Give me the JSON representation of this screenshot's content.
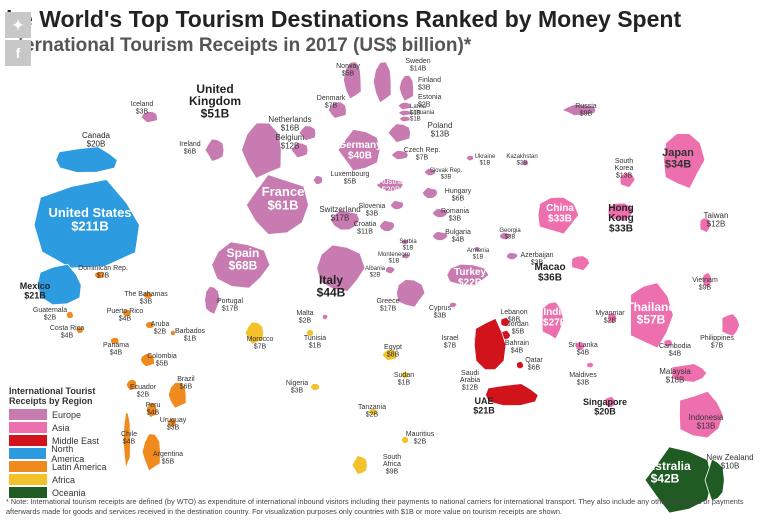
{
  "header": {
    "title": "he World's Top Tourism Destinations Ranked by Money Spent",
    "subtitle": "nternational Tourism Receipts in 2017 (US$ billion)*"
  },
  "share_icons": [
    "twitter-icon",
    "facebook-icon"
  ],
  "legend": {
    "title": "International Tourist Receipts by Region",
    "items": [
      {
        "label": "Europe",
        "color": "#c77bb0"
      },
      {
        "label": "Asia",
        "color": "#ee6fae"
      },
      {
        "label": "Middle East",
        "color": "#d1141c"
      },
      {
        "label": "North America",
        "color": "#2c9be0"
      },
      {
        "label": "Latin America",
        "color": "#ef8a1e"
      },
      {
        "label": "Africa",
        "color": "#f3c129"
      },
      {
        "label": "Oceania",
        "color": "#1f5b23"
      }
    ]
  },
  "footnote": "* Note: International tourism receipts are defined (by WTO) as expenditure of international inbound visitors including their payments to national carriers for international transport. They also include any other payments or payments afterwards made for goods and services received in the destination country. For visualization purposes only countries with $1B or more value on tourism receipts are shown.",
  "chart_data": {
    "type": "map",
    "title": "he World's Top Tourism Destinations Ranked by Money Spent",
    "subtitle": "nternational Tourism Receipts in 2017 (US$ billion)*",
    "unit": "US$ billion",
    "series": [
      {
        "name": "Europe",
        "color": "#c77bb0",
        "points": [
          {
            "country": "Norway",
            "label": "$5B",
            "value": 5
          },
          {
            "country": "Sweden",
            "label": "$14B",
            "value": 14
          },
          {
            "country": "Finland",
            "label": "$3B",
            "value": 3
          },
          {
            "country": "Iceland",
            "label": "$3B",
            "value": 3
          },
          {
            "country": "United Kingdom",
            "label": "$51B",
            "value": 51
          },
          {
            "country": "Denmark",
            "label": "$7B",
            "value": 7
          },
          {
            "country": "Estonia",
            "label": "$2B",
            "value": 2
          },
          {
            "country": "Latvia",
            "label": "$1B",
            "value": 1
          },
          {
            "country": "Lithuania",
            "label": "$1B",
            "value": 1
          },
          {
            "country": "Netherlands",
            "label": "$16B",
            "value": 16
          },
          {
            "country": "Poland",
            "label": "$13B",
            "value": 13
          },
          {
            "country": "Russia",
            "label": "$9B",
            "value": 9
          },
          {
            "country": "Ireland",
            "label": "$6B",
            "value": 6
          },
          {
            "country": "Belgium",
            "label": "$12B",
            "value": 12
          },
          {
            "country": "Germany",
            "label": "$40B",
            "value": 40
          },
          {
            "country": "Czech Rep.",
            "label": "$7B",
            "value": 7
          },
          {
            "country": "Ukraine",
            "label": "$1B",
            "value": 1
          },
          {
            "country": "Kazakhstan",
            "label": "$2B",
            "value": 2
          },
          {
            "country": "Luxembourg",
            "label": "$5B",
            "value": 5
          },
          {
            "country": "Austria",
            "label": "$20B",
            "value": 20
          },
          {
            "country": "Slovak Rep.",
            "label": "$3B",
            "value": 3
          },
          {
            "country": "France",
            "label": "$61B",
            "value": 61
          },
          {
            "country": "Hungary",
            "label": "$6B",
            "value": 6
          },
          {
            "country": "Slovenia",
            "label": "$3B",
            "value": 3
          },
          {
            "country": "Switzerland",
            "label": "$17B",
            "value": 17
          },
          {
            "country": "Romania",
            "label": "$3B",
            "value": 3
          },
          {
            "country": "Croatia",
            "label": "$11B",
            "value": 11
          },
          {
            "country": "Bulgaria",
            "label": "$4B",
            "value": 4
          },
          {
            "country": "Georgia",
            "label": "$3B",
            "value": 3
          },
          {
            "country": "Serbia",
            "label": "$1B",
            "value": 1
          },
          {
            "country": "Armenia",
            "label": "$1B",
            "value": 1
          },
          {
            "country": "Azerbaijan",
            "label": "$3B",
            "value": 3
          },
          {
            "country": "Spain",
            "label": "$68B",
            "value": 68
          },
          {
            "country": "Montenegro",
            "label": "$1B",
            "value": 1
          },
          {
            "country": "Italy",
            "label": "$44B",
            "value": 44
          },
          {
            "country": "Albania",
            "label": "$2B",
            "value": 2
          },
          {
            "country": "Turkey",
            "label": "$22B",
            "value": 22
          },
          {
            "country": "Portugal",
            "label": "$17B",
            "value": 17
          },
          {
            "country": "Greece",
            "label": "$17B",
            "value": 17
          },
          {
            "country": "Cyprus",
            "label": "$3B",
            "value": 3
          },
          {
            "country": "Malta",
            "label": "$2B",
            "value": 2
          }
        ]
      },
      {
        "name": "Asia",
        "color": "#ee6fae",
        "points": [
          {
            "country": "Japan",
            "label": "$34B",
            "value": 34
          },
          {
            "country": "South Korea",
            "label": "$13B",
            "value": 13
          },
          {
            "country": "China",
            "label": "$33B",
            "value": 33
          },
          {
            "country": "Hong Kong",
            "label": "$33B",
            "value": 33
          },
          {
            "country": "Taiwan",
            "label": "$12B",
            "value": 12
          },
          {
            "country": "Macao",
            "label": "$36B",
            "value": 36
          },
          {
            "country": "India",
            "label": "$27B",
            "value": 27
          },
          {
            "country": "Myanmar",
            "label": "$2B",
            "value": 2
          },
          {
            "country": "Thailand",
            "label": "$57B",
            "value": 57
          },
          {
            "country": "Vietnam",
            "label": "$9B",
            "value": 9
          },
          {
            "country": "Philippines",
            "label": "$7B",
            "value": 7
          },
          {
            "country": "Sri Lanka",
            "label": "$4B",
            "value": 4
          },
          {
            "country": "Cambodia",
            "label": "$4B",
            "value": 4
          },
          {
            "country": "Maldives",
            "label": "$3B",
            "value": 3
          },
          {
            "country": "Malaysia",
            "label": "$18B",
            "value": 18
          },
          {
            "country": "Singapore",
            "label": "$20B",
            "value": 20
          },
          {
            "country": "Indonesia",
            "label": "$13B",
            "value": 13
          }
        ]
      },
      {
        "name": "Middle East",
        "color": "#d1141c",
        "points": [
          {
            "country": "Lebanon",
            "label": "$8B",
            "value": 8
          },
          {
            "country": "Jordan",
            "label": "$5B",
            "value": 5
          },
          {
            "country": "Israel",
            "label": "$7B",
            "value": 7
          },
          {
            "country": "Bahrain",
            "label": "$4B",
            "value": 4
          },
          {
            "country": "Qatar",
            "label": "$6B",
            "value": 6
          },
          {
            "country": "Saudi Arabia",
            "label": "$12B",
            "value": 12
          },
          {
            "country": "UAE",
            "label": "$21B",
            "value": 21
          }
        ]
      },
      {
        "name": "North America",
        "color": "#2c9be0",
        "points": [
          {
            "country": "Canada",
            "label": "$20B",
            "value": 20
          },
          {
            "country": "United States",
            "label": "$211B",
            "value": 211
          },
          {
            "country": "Mexico",
            "label": "$21B",
            "value": 21
          }
        ]
      },
      {
        "name": "Latin America",
        "color": "#ef8a1e",
        "points": [
          {
            "country": "Dominican Rep.",
            "label": "$7B",
            "value": 7
          },
          {
            "country": "The Bahamas",
            "label": "$3B",
            "value": 3
          },
          {
            "country": "Guatemala",
            "label": "$2B",
            "value": 2
          },
          {
            "country": "Puerto Rico",
            "label": "$4B",
            "value": 4
          },
          {
            "country": "Aruba",
            "label": "$2B",
            "value": 2
          },
          {
            "country": "Barbados",
            "label": "$1B",
            "value": 1
          },
          {
            "country": "Costa Rica",
            "label": "$4B",
            "value": 4
          },
          {
            "country": "Panama",
            "label": "$4B",
            "value": 4
          },
          {
            "country": "Colombia",
            "label": "$5B",
            "value": 5
          },
          {
            "country": "Ecuador",
            "label": "$2B",
            "value": 2
          },
          {
            "country": "Brazil",
            "label": "$6B",
            "value": 6
          },
          {
            "country": "Peru",
            "label": "$4B",
            "value": 4
          },
          {
            "country": "Uruguay",
            "label": "$3B",
            "value": 3
          },
          {
            "country": "Chile",
            "label": "$4B",
            "value": 4
          },
          {
            "country": "Argentina",
            "label": "$5B",
            "value": 5
          }
        ]
      },
      {
        "name": "Africa",
        "color": "#f3c129",
        "points": [
          {
            "country": "Morocco",
            "label": "$7B",
            "value": 7
          },
          {
            "country": "Tunisia",
            "label": "$1B",
            "value": 1
          },
          {
            "country": "Egypt",
            "label": "$8B",
            "value": 8
          },
          {
            "country": "Sudan",
            "label": "$1B",
            "value": 1
          },
          {
            "country": "Nigeria",
            "label": "$3B",
            "value": 3
          },
          {
            "country": "Tanzania",
            "label": "$2B",
            "value": 2
          },
          {
            "country": "Mauritius",
            "label": "$2B",
            "value": 2
          },
          {
            "country": "South Africa",
            "label": "$9B",
            "value": 9
          }
        ]
      },
      {
        "name": "Oceania",
        "color": "#1f5b23",
        "points": [
          {
            "country": "Australia",
            "label": "$42B",
            "value": 42
          },
          {
            "country": "New Zealand",
            "label": "$10B",
            "value": 10
          }
        ]
      }
    ]
  }
}
